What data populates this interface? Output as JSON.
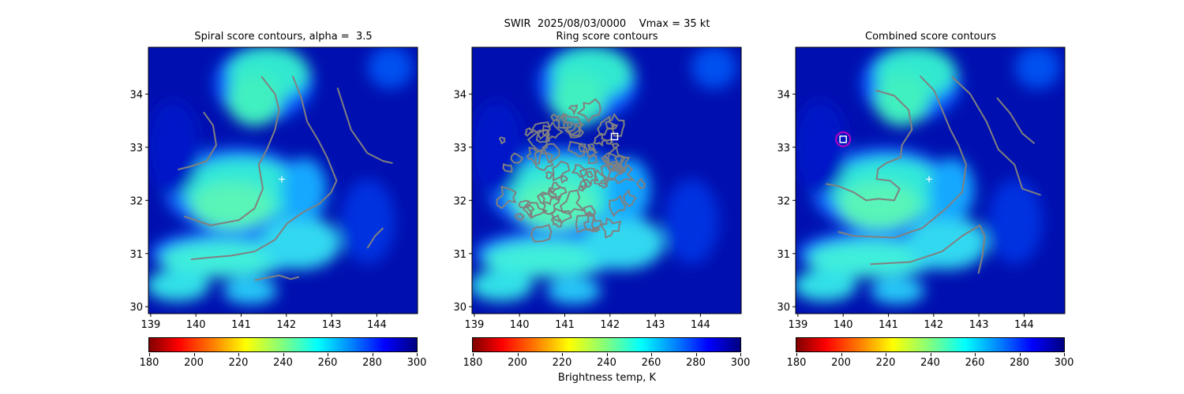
{
  "suptitle": "SWIR  2025/08/03/0000    Vmax = 35 kt",
  "colorbar_label": "Brightness temp, K",
  "chart_data": {
    "type": "heatmap",
    "xlim": [
      138.95,
      144.9
    ],
    "ylim": [
      29.87,
      34.88
    ],
    "xticks": [
      139,
      140,
      141,
      142,
      143,
      144
    ],
    "yticks": [
      30,
      31,
      32,
      33,
      34
    ],
    "colorbar": {
      "cmap": "jet_r",
      "range": [
        180,
        300
      ],
      "ticks": [
        180,
        200,
        220,
        240,
        260,
        280,
        300
      ]
    },
    "contour_color": "#808080",
    "panels": [
      {
        "title": "Spiral score contours, alpha =  3.5",
        "center_marker": [
          141.9,
          32.4
        ],
        "contours": [
          [
            [
              141.45,
              34.33
            ],
            [
              141.75,
              34.0
            ],
            [
              141.84,
              33.7
            ],
            [
              141.75,
              33.33
            ],
            [
              141.57,
              32.96
            ],
            [
              141.39,
              32.67
            ],
            [
              141.48,
              32.22
            ],
            [
              141.3,
              31.85
            ],
            [
              140.95,
              31.63
            ],
            [
              140.33,
              31.53
            ],
            [
              139.74,
              31.7
            ]
          ],
          [
            [
              142.14,
              34.34
            ],
            [
              142.33,
              33.93
            ],
            [
              142.46,
              33.48
            ],
            [
              142.72,
              33.11
            ],
            [
              142.9,
              32.81
            ],
            [
              143.11,
              32.37
            ],
            [
              142.99,
              32.15
            ],
            [
              142.72,
              31.93
            ],
            [
              142.37,
              31.78
            ],
            [
              142.01,
              31.56
            ],
            [
              141.75,
              31.26
            ],
            [
              141.3,
              31.04
            ],
            [
              140.77,
              30.96
            ],
            [
              140.24,
              30.92
            ],
            [
              139.89,
              30.89
            ]
          ],
          [
            [
              140.17,
              33.66
            ],
            [
              140.38,
              33.41
            ],
            [
              140.45,
              33.04
            ],
            [
              140.24,
              32.74
            ],
            [
              139.89,
              32.64
            ],
            [
              139.6,
              32.58
            ]
          ],
          [
            [
              143.13,
              34.12
            ],
            [
              143.29,
              33.7
            ],
            [
              143.43,
              33.33
            ],
            [
              143.79,
              32.89
            ],
            [
              144.14,
              32.74
            ],
            [
              144.35,
              32.7
            ]
          ],
          [
            [
              143.79,
              31.1
            ],
            [
              143.96,
              31.33
            ],
            [
              144.14,
              31.48
            ]
          ],
          [
            [
              141.3,
              30.5
            ],
            [
              141.84,
              30.59
            ],
            [
              142.1,
              30.52
            ],
            [
              142.28,
              30.56
            ]
          ]
        ]
      },
      {
        "title": "Ring score contours",
        "square_marker": [
          142.1,
          33.2
        ],
        "ring_region": {
          "center": [
            141.05,
            32.55
          ],
          "radius_lon": 1.75,
          "radius_lat": 1.25
        }
      },
      {
        "title": "Combined score contours",
        "center_marker": [
          141.9,
          32.4
        ],
        "square_marker": [
          140.0,
          33.15
        ],
        "circle_marker": [
          140.0,
          33.15
        ],
        "circle_color": "#c000c0",
        "contours": [
          [
            [
              140.72,
              34.07
            ],
            [
              141.13,
              33.97
            ],
            [
              141.45,
              33.7
            ],
            [
              141.52,
              33.33
            ],
            [
              141.3,
              33.04
            ],
            [
              141.27,
              32.81
            ],
            [
              140.95,
              32.7
            ],
            [
              140.77,
              32.59
            ],
            [
              140.74,
              32.4
            ],
            [
              141.04,
              32.37
            ],
            [
              141.25,
              32.22
            ],
            [
              141.13,
              32.0
            ],
            [
              140.77,
              32.03
            ],
            [
              140.51,
              32.0
            ],
            [
              140.24,
              32.15
            ],
            [
              139.89,
              32.27
            ],
            [
              139.62,
              32.31
            ]
          ],
          [
            [
              141.7,
              34.34
            ],
            [
              142.01,
              34.07
            ],
            [
              142.19,
              33.7
            ],
            [
              142.37,
              33.33
            ],
            [
              142.55,
              33.04
            ],
            [
              142.72,
              32.67
            ],
            [
              142.63,
              32.15
            ],
            [
              142.28,
              31.85
            ],
            [
              141.75,
              31.48
            ],
            [
              141.13,
              31.3
            ],
            [
              140.24,
              31.33
            ],
            [
              139.89,
              31.41
            ]
          ],
          [
            [
              142.4,
              34.33
            ],
            [
              142.81,
              34.0
            ],
            [
              143.17,
              33.48
            ],
            [
              143.43,
              32.96
            ],
            [
              143.79,
              32.67
            ],
            [
              143.96,
              32.22
            ],
            [
              144.37,
              32.1
            ]
          ],
          [
            [
              143.4,
              33.93
            ],
            [
              143.7,
              33.63
            ],
            [
              143.96,
              33.26
            ],
            [
              144.23,
              33.07
            ]
          ],
          [
            [
              140.6,
              30.8
            ],
            [
              141.48,
              30.84
            ],
            [
              142.19,
              31.04
            ],
            [
              142.63,
              31.33
            ],
            [
              143.02,
              31.53
            ],
            [
              143.13,
              31.33
            ],
            [
              143.08,
              30.96
            ],
            [
              142.99,
              30.62
            ]
          ]
        ]
      }
    ]
  }
}
